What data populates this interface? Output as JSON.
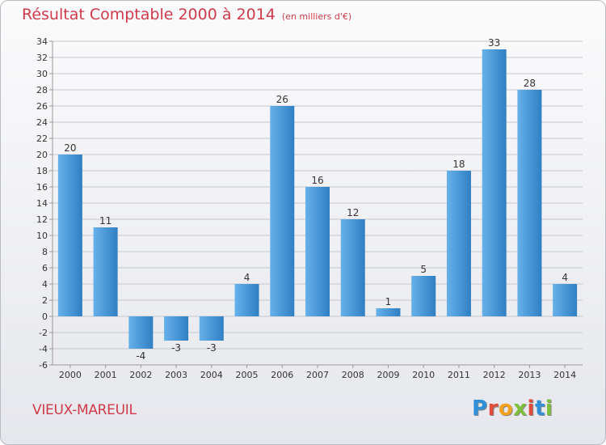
{
  "title": "Résultat Comptable 2000 à 2014",
  "subtitle": "(en milliers d'€)",
  "town": "VIEUX-MAREUIL",
  "logo": {
    "letters": [
      "P",
      "r",
      "o",
      "x",
      "i",
      "t",
      "i"
    ],
    "colors": [
      "#2f8fd8",
      "#e14b3b",
      "#f2a31b",
      "#7bbf3a",
      "#e14b3b",
      "#2f8fd8",
      "#7bbf3a"
    ]
  },
  "colors": {
    "bar_light": "#67b1ea",
    "bar_dark": "#2f7fc3",
    "grid": "#c4c7cf",
    "axis": "#999999",
    "text": "#333333"
  },
  "chart_data": {
    "type": "bar",
    "title": "Résultat Comptable 2000 à 2014",
    "subtitle": "(en milliers d'€)",
    "xlabel": "",
    "ylabel": "",
    "categories": [
      "2000",
      "2001",
      "2002",
      "2003",
      "2004",
      "2005",
      "2006",
      "2007",
      "2008",
      "2009",
      "2010",
      "2011",
      "2012",
      "2013",
      "2014"
    ],
    "values": [
      20,
      11,
      -4,
      -3,
      -3,
      4,
      26,
      16,
      12,
      1,
      5,
      18,
      33,
      28,
      4
    ],
    "data_labels": [
      "20",
      "11",
      "-4",
      "-3",
      "-3",
      "4",
      "26",
      "16",
      "12",
      "1",
      "5",
      "18",
      "33",
      "28",
      "4"
    ],
    "ylim": [
      -6,
      34
    ],
    "yticks": [
      -6,
      -4,
      -2,
      0,
      2,
      4,
      6,
      8,
      10,
      12,
      14,
      16,
      18,
      20,
      22,
      24,
      26,
      28,
      30,
      32,
      34
    ],
    "ytick_labels": [
      "-6",
      "-4",
      "-2",
      "0",
      "2",
      "4",
      "6",
      "8",
      "10",
      "12",
      "14",
      "16",
      "18",
      "20",
      "22",
      "24",
      "26",
      "28",
      "30",
      "32",
      "34"
    ],
    "grid": true,
    "legend": "none"
  }
}
